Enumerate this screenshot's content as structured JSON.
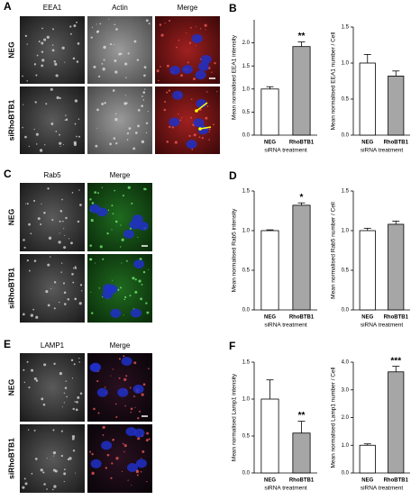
{
  "figure": {
    "image_panels": [
      {
        "letter": "A",
        "columns": [
          "EEA1",
          "Actin",
          "Merge"
        ],
        "rows": [
          "NEG",
          "siRhoBTB1"
        ]
      },
      {
        "letter": "C",
        "columns": [
          "Rab5",
          "Merge"
        ],
        "rows": [
          "NEG",
          "siRhoBTB1"
        ]
      },
      {
        "letter": "E",
        "columns": [
          "LAMP1",
          "Merge"
        ],
        "rows": [
          "NEG",
          "siRhoBTB1"
        ]
      }
    ],
    "chart_letters": [
      "B",
      "D",
      "F"
    ]
  },
  "chart_data": [
    {
      "type": "bar",
      "y_label": "Mean normalised EEA1 intensity",
      "x_label": "siRNA treatment",
      "categories": [
        "NEG",
        "RhoBTB1"
      ],
      "values": [
        1.0,
        1.92
      ],
      "errors": [
        0.05,
        0.1
      ],
      "significance": [
        null,
        "**"
      ],
      "colors": [
        "#ffffff",
        "#a6a6a6"
      ],
      "ylim": [
        0,
        2.5
      ],
      "yticks": [
        {
          "value": 0,
          "label": "0.0"
        },
        {
          "value": 0.5,
          "label": "0.5"
        },
        {
          "value": 1,
          "label": "1.0"
        },
        {
          "value": 1.5,
          "label": "1.5"
        },
        {
          "value": 2,
          "label": "2.0"
        }
      ]
    },
    {
      "type": "bar",
      "y_label": "Mean normalised EEA1 number / Cell",
      "x_label": "siRNA treatment",
      "categories": [
        "NEG",
        "RhoBTB1"
      ],
      "values": [
        1.0,
        0.82
      ],
      "errors": [
        0.12,
        0.07
      ],
      "significance": [
        null,
        null
      ],
      "colors": [
        "#ffffff",
        "#a6a6a6"
      ],
      "ylim": [
        0,
        1.5
      ],
      "yticks": [
        {
          "value": 0,
          "label": "0.0"
        },
        {
          "value": 0.5,
          "label": "0.5"
        },
        {
          "value": 1,
          "label": "1.0"
        },
        {
          "value": 1.5,
          "label": "1.5"
        }
      ]
    },
    {
      "type": "bar",
      "y_label": "Mean normalised Rab5 intensity",
      "x_label": "siRNA treatment",
      "categories": [
        "NEG",
        "RhoBTB1"
      ],
      "values": [
        1.0,
        1.32
      ],
      "errors": [
        0.01,
        0.03
      ],
      "significance": [
        null,
        "*"
      ],
      "colors": [
        "#ffffff",
        "#a6a6a6"
      ],
      "ylim": [
        0,
        1.5
      ],
      "yticks": [
        {
          "value": 0,
          "label": "0.0"
        },
        {
          "value": 0.5,
          "label": "0.5"
        },
        {
          "value": 1,
          "label": "1.0"
        },
        {
          "value": 1.5,
          "label": "1.5"
        }
      ]
    },
    {
      "type": "bar",
      "y_label": "Mean normalised Rab5 number / Cell",
      "x_label": "siRNA treatment",
      "categories": [
        "NEG",
        "RhoBTB1"
      ],
      "values": [
        1.0,
        1.08
      ],
      "errors": [
        0.03,
        0.04
      ],
      "significance": [
        null,
        null
      ],
      "colors": [
        "#ffffff",
        "#a6a6a6"
      ],
      "ylim": [
        0,
        1.5
      ],
      "yticks": [
        {
          "value": 0,
          "label": "0.0"
        },
        {
          "value": 0.5,
          "label": "0.5"
        },
        {
          "value": 1,
          "label": "1.0"
        },
        {
          "value": 1.5,
          "label": "1.5"
        }
      ]
    },
    {
      "type": "bar",
      "y_label": "Mean normalised Lamp1 intensity",
      "x_label": "siRNA treatment",
      "categories": [
        "NEG",
        "RhoBTB1"
      ],
      "values": [
        1.0,
        0.54
      ],
      "errors": [
        0.26,
        0.16
      ],
      "significance": [
        null,
        "**"
      ],
      "colors": [
        "#ffffff",
        "#a6a6a6"
      ],
      "ylim": [
        0,
        1.5
      ],
      "yticks": [
        {
          "value": 0,
          "label": "0.0"
        },
        {
          "value": 0.5,
          "label": "0.5"
        },
        {
          "value": 1,
          "label": "1.0"
        },
        {
          "value": 1.5,
          "label": "1.5"
        }
      ]
    },
    {
      "type": "bar",
      "y_label": "Mean normalised Lamp1 number / Cell",
      "x_label": "siRNA treatment",
      "categories": [
        "NEG",
        "RhoBTB1"
      ],
      "values": [
        1.0,
        3.65
      ],
      "errors": [
        0.05,
        0.2
      ],
      "significance": [
        null,
        "***"
      ],
      "colors": [
        "#ffffff",
        "#a6a6a6"
      ],
      "ylim": [
        0,
        4
      ],
      "yticks": [
        {
          "value": 0,
          "label": "0.0"
        },
        {
          "value": 1,
          "label": "1.0"
        },
        {
          "value": 2,
          "label": "2.0"
        },
        {
          "value": 3,
          "label": "3.0"
        },
        {
          "value": 4,
          "label": "4.0"
        }
      ]
    }
  ]
}
